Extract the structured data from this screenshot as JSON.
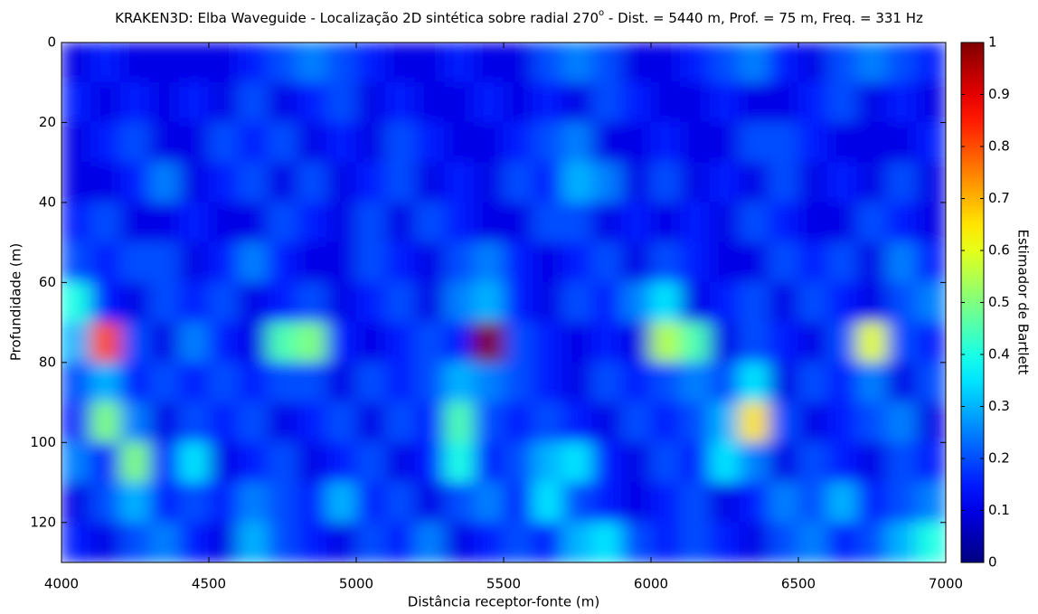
{
  "chart_data": {
    "type": "heatmap",
    "title": [
      "KRAKEN3D: Elba Waveguide - Localização 2D sintética sobre radial 270",
      "o",
      " - Dist. = 5440 m, Prof. = 75 m, Freq. = 331 Hz"
    ],
    "xlabel": "Distância  receptor-fonte  (m)",
    "ylabel": "Profundidade  (m)",
    "colorbar_label": "Estimador  de  Bartlett",
    "colormap": "jet",
    "xlim": [
      4000,
      7000
    ],
    "xticks": [
      4000,
      4500,
      5000,
      5500,
      6000,
      6500,
      7000
    ],
    "ylim": [
      0,
      130
    ],
    "yticks": [
      0,
      20,
      40,
      60,
      80,
      100,
      120
    ],
    "y_reversed": true,
    "clim": [
      0,
      1
    ],
    "cticks": [
      0,
      0.1,
      0.2,
      0.3,
      0.4,
      0.5,
      0.6,
      0.7,
      0.8,
      0.9,
      1
    ],
    "x": [
      4050,
      4150,
      4250,
      4350,
      4450,
      4550,
      4650,
      4750,
      4850,
      4950,
      5050,
      5150,
      5250,
      5350,
      5450,
      5550,
      5650,
      5750,
      5850,
      5950,
      6050,
      6150,
      6250,
      6350,
      6450,
      6550,
      6650,
      6750,
      6850,
      6950
    ],
    "y": [
      5,
      15,
      25,
      35,
      45,
      55,
      65,
      75,
      85,
      95,
      105,
      115,
      125
    ],
    "z": [
      [
        0.1,
        0.15,
        0.1,
        0.1,
        0.1,
        0.1,
        0.15,
        0.2,
        0.25,
        0.2,
        0.15,
        0.1,
        0.1,
        0.15,
        0.1,
        0.1,
        0.2,
        0.25,
        0.2,
        0.1,
        0.1,
        0.15,
        0.2,
        0.25,
        0.15,
        0.1,
        0.2,
        0.25,
        0.2,
        0.15
      ],
      [
        0.15,
        0.1,
        0.15,
        0.1,
        0.15,
        0.1,
        0.2,
        0.1,
        0.15,
        0.2,
        0.1,
        0.15,
        0.1,
        0.1,
        0.15,
        0.1,
        0.15,
        0.1,
        0.2,
        0.15,
        0.1,
        0.1,
        0.15,
        0.1,
        0.1,
        0.15,
        0.2,
        0.1,
        0.15,
        0.1
      ],
      [
        0.1,
        0.15,
        0.2,
        0.1,
        0.1,
        0.2,
        0.15,
        0.2,
        0.1,
        0.15,
        0.1,
        0.2,
        0.15,
        0.1,
        0.1,
        0.15,
        0.2,
        0.25,
        0.1,
        0.1,
        0.15,
        0.1,
        0.1,
        0.2,
        0.2,
        0.15,
        0.1,
        0.1,
        0.1,
        0.15
      ],
      [
        0.1,
        0.1,
        0.15,
        0.25,
        0.1,
        0.15,
        0.2,
        0.1,
        0.2,
        0.1,
        0.15,
        0.2,
        0.1,
        0.15,
        0.1,
        0.2,
        0.15,
        0.3,
        0.25,
        0.1,
        0.2,
        0.1,
        0.15,
        0.1,
        0.2,
        0.1,
        0.15,
        0.1,
        0.2,
        0.1
      ],
      [
        0.15,
        0.2,
        0.1,
        0.1,
        0.15,
        0.1,
        0.1,
        0.2,
        0.15,
        0.1,
        0.2,
        0.1,
        0.2,
        0.15,
        0.1,
        0.1,
        0.2,
        0.2,
        0.1,
        0.15,
        0.1,
        0.15,
        0.1,
        0.2,
        0.15,
        0.1,
        0.1,
        0.2,
        0.15,
        0.1
      ],
      [
        0.2,
        0.15,
        0.2,
        0.2,
        0.1,
        0.15,
        0.25,
        0.15,
        0.1,
        0.1,
        0.2,
        0.15,
        0.1,
        0.2,
        0.25,
        0.15,
        0.1,
        0.15,
        0.2,
        0.1,
        0.2,
        0.15,
        0.1,
        0.1,
        0.2,
        0.15,
        0.2,
        0.1,
        0.25,
        0.15
      ],
      [
        0.4,
        0.15,
        0.1,
        0.2,
        0.15,
        0.2,
        0.1,
        0.15,
        0.2,
        0.1,
        0.15,
        0.2,
        0.1,
        0.25,
        0.3,
        0.15,
        0.1,
        0.2,
        0.15,
        0.25,
        0.35,
        0.1,
        0.15,
        0.2,
        0.1,
        0.2,
        0.15,
        0.1,
        0.2,
        0.25
      ],
      [
        0.3,
        0.8,
        0.2,
        0.1,
        0.25,
        0.15,
        0.1,
        0.45,
        0.5,
        0.15,
        0.1,
        0.15,
        0.2,
        0.15,
        1,
        0.2,
        0.15,
        0.1,
        0.15,
        0.1,
        0.55,
        0.45,
        0.1,
        0.2,
        0.15,
        0.1,
        0.2,
        0.6,
        0.2,
        0.15
      ],
      [
        0.2,
        0.3,
        0.15,
        0.2,
        0.15,
        0.2,
        0.15,
        0.2,
        0.2,
        0.1,
        0.2,
        0.15,
        0.2,
        0.3,
        0.25,
        0.2,
        0.15,
        0.1,
        0.2,
        0.15,
        0.2,
        0.25,
        0.2,
        0.35,
        0.1,
        0.2,
        0.15,
        0.25,
        0.1,
        0.2
      ],
      [
        0.15,
        0.5,
        0.25,
        0.1,
        0.2,
        0.15,
        0.2,
        0.1,
        0.15,
        0.2,
        0.1,
        0.2,
        0.15,
        0.45,
        0.2,
        0.15,
        0.2,
        0.15,
        0.1,
        0.2,
        0.15,
        0.2,
        0.3,
        0.65,
        0.2,
        0.1,
        0.15,
        0.2,
        0.25,
        0.1
      ],
      [
        0.25,
        0.15,
        0.5,
        0.15,
        0.35,
        0.1,
        0.15,
        0.2,
        0.1,
        0.15,
        0.2,
        0.1,
        0.15,
        0.4,
        0.15,
        0.2,
        0.3,
        0.35,
        0.15,
        0.1,
        0.2,
        0.15,
        0.35,
        0.25,
        0.1,
        0.2,
        0.15,
        0.1,
        0.2,
        0.15
      ],
      [
        0.1,
        0.2,
        0.3,
        0.15,
        0.2,
        0.15,
        0.25,
        0.2,
        0.15,
        0.3,
        0.15,
        0.2,
        0.1,
        0.2,
        0.25,
        0.15,
        0.35,
        0.2,
        0.15,
        0.1,
        0.15,
        0.2,
        0.1,
        0.15,
        0.25,
        0.2,
        0.3,
        0.15,
        0.2,
        0.25
      ],
      [
        0.15,
        0.1,
        0.2,
        0.25,
        0.15,
        0.1,
        0.3,
        0.2,
        0.15,
        0.1,
        0.2,
        0.15,
        0.25,
        0.1,
        0.15,
        0.2,
        0.15,
        0.3,
        0.35,
        0.2,
        0.15,
        0.2,
        0.15,
        0.1,
        0.2,
        0.25,
        0.15,
        0.2,
        0.3,
        0.4
      ]
    ]
  }
}
